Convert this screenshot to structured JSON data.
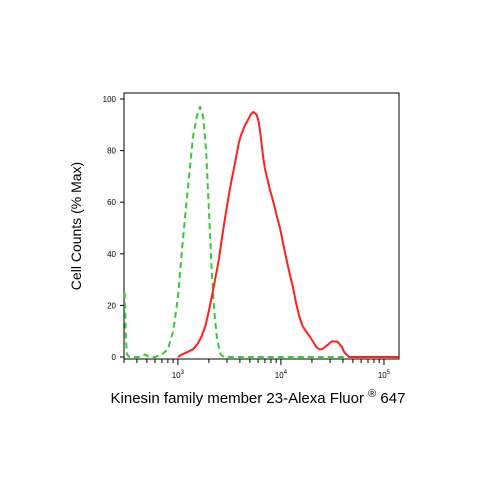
{
  "chart_data": {
    "type": "line",
    "title": "",
    "xlabel": {
      "main": "Kinesin family member 23-Alexa Fluor",
      "superscript": "®",
      "suffix": "647"
    },
    "ylabel": "Cell Counts (% Max)",
    "x_scale": "log",
    "xlim": [
      300,
      140000
    ],
    "ylim": [
      0,
      100
    ],
    "x_ticks": [
      {
        "value": 1000,
        "base": "10",
        "exp": "3"
      },
      {
        "value": 10000,
        "base": "10",
        "exp": "4"
      },
      {
        "value": 100000,
        "base": "10",
        "exp": "5"
      }
    ],
    "y_ticks": [
      0,
      20,
      40,
      60,
      80,
      100
    ],
    "grid": false,
    "series": [
      {
        "color": "#33cc33",
        "style": "dashed",
        "points": [
          [
            305,
            25
          ],
          [
            312,
            8
          ],
          [
            320,
            1
          ],
          [
            340,
            0
          ],
          [
            420,
            0
          ],
          [
            480,
            1
          ],
          [
            530,
            0
          ],
          [
            600,
            0
          ],
          [
            700,
            1
          ],
          [
            800,
            3
          ],
          [
            900,
            10
          ],
          [
            1000,
            23
          ],
          [
            1100,
            42
          ],
          [
            1200,
            58
          ],
          [
            1300,
            72
          ],
          [
            1400,
            85
          ],
          [
            1520,
            93
          ],
          [
            1640,
            97
          ],
          [
            1760,
            93
          ],
          [
            1880,
            80
          ],
          [
            2000,
            57
          ],
          [
            2120,
            35
          ],
          [
            2250,
            18
          ],
          [
            2400,
            7
          ],
          [
            2600,
            1
          ],
          [
            2800,
            0
          ],
          [
            5000,
            0
          ],
          [
            140000,
            0
          ]
        ]
      },
      {
        "color": "#ff2020",
        "style": "solid",
        "points": [
          [
            1000,
            0
          ],
          [
            1100,
            1
          ],
          [
            1250,
            2
          ],
          [
            1400,
            3
          ],
          [
            1550,
            5
          ],
          [
            1700,
            8
          ],
          [
            1850,
            12
          ],
          [
            2000,
            18
          ],
          [
            2150,
            24
          ],
          [
            2300,
            30
          ],
          [
            2500,
            38
          ],
          [
            2700,
            47
          ],
          [
            2900,
            55
          ],
          [
            3100,
            62
          ],
          [
            3300,
            68
          ],
          [
            3500,
            73
          ],
          [
            3700,
            78
          ],
          [
            3900,
            83
          ],
          [
            4100,
            86
          ],
          [
            4300,
            88
          ],
          [
            4500,
            90
          ],
          [
            4800,
            92
          ],
          [
            5100,
            94
          ],
          [
            5400,
            95
          ],
          [
            5800,
            94
          ],
          [
            6100,
            91
          ],
          [
            6400,
            85
          ],
          [
            6700,
            78
          ],
          [
            7000,
            73
          ],
          [
            7400,
            69
          ],
          [
            7800,
            65
          ],
          [
            8200,
            62
          ],
          [
            8700,
            58
          ],
          [
            9200,
            54
          ],
          [
            9800,
            50
          ],
          [
            10500,
            44
          ],
          [
            11300,
            38
          ],
          [
            12200,
            32
          ],
          [
            13100,
            27
          ],
          [
            14000,
            21
          ],
          [
            15000,
            16
          ],
          [
            16200,
            12
          ],
          [
            17500,
            10
          ],
          [
            19000,
            8
          ],
          [
            20500,
            6
          ],
          [
            22000,
            4
          ],
          [
            23500,
            3
          ],
          [
            25000,
            3
          ],
          [
            27000,
            4
          ],
          [
            29000,
            5
          ],
          [
            31000,
            6
          ],
          [
            33000,
            6
          ],
          [
            35000,
            6
          ],
          [
            37000,
            5
          ],
          [
            39000,
            4
          ],
          [
            41000,
            2
          ],
          [
            43000,
            1
          ],
          [
            46000,
            0
          ],
          [
            140000,
            0
          ]
        ]
      }
    ]
  }
}
